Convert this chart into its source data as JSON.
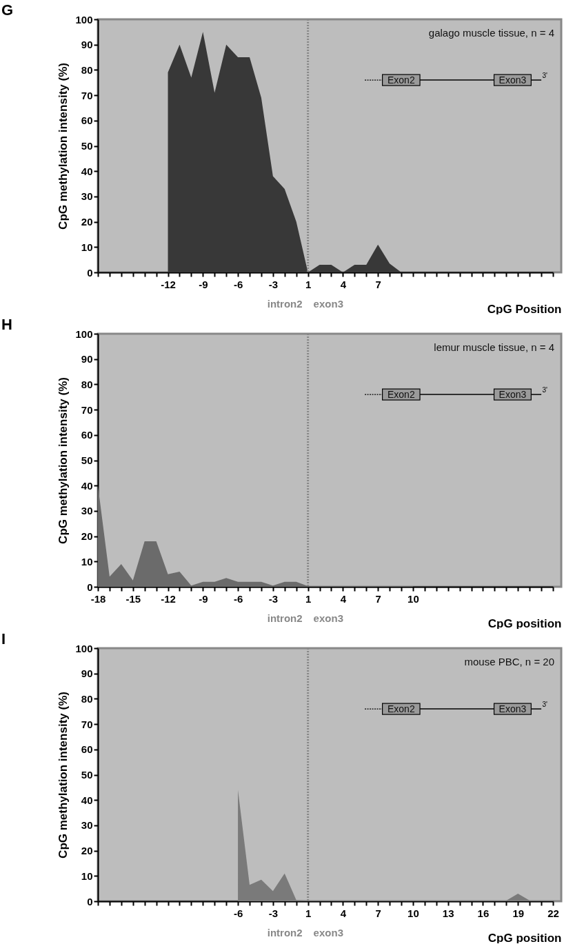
{
  "chart_data": [
    {
      "type": "area",
      "title": "G",
      "xlabel": "CpG Position",
      "ylabel": "CpG methylation intensity (%)",
      "annotations": [
        "galago muscle tissue, n = 4",
        "intron2",
        "exon3",
        "Exon2",
        "Exon3",
        "3'"
      ],
      "categories": [
        null,
        null,
        null,
        null,
        null,
        null,
        "-12",
        null,
        null,
        "-9",
        null,
        null,
        "-6",
        null,
        null,
        "-3",
        null,
        null,
        "1",
        null,
        null,
        "4",
        null,
        null,
        "7",
        null,
        null,
        null,
        null,
        null,
        null,
        null,
        null,
        null,
        null,
        null,
        null,
        null,
        null,
        null
      ],
      "values": [
        null,
        null,
        null,
        null,
        null,
        null,
        79,
        90,
        77,
        95,
        71,
        90,
        85,
        85,
        69,
        38,
        33,
        20,
        0,
        3,
        3,
        0,
        3,
        3,
        11,
        3.5,
        0,
        null,
        null,
        null,
        null,
        null,
        null,
        null,
        null,
        null,
        null,
        null,
        null,
        null
      ],
      "color": "#383838",
      "ylim": [
        0,
        100
      ],
      "yticks": [
        0,
        10,
        20,
        30,
        40,
        50,
        60,
        70,
        80,
        90,
        100
      ],
      "ref_lines": [
        {
          "axis": "x",
          "value": "1",
          "label": null,
          "color": "#888888",
          "line_style": "dotted"
        }
      ],
      "grid": false
    },
    {
      "type": "area",
      "title": "H",
      "xlabel": "CpG position",
      "ylabel": "CpG methylation intensity (%)",
      "annotations": [
        "lemur muscle tissue, n = 4",
        "intron2",
        "exon3",
        "Exon2",
        "Exon3",
        "3'"
      ],
      "categories": [
        "-18",
        null,
        null,
        "-15",
        null,
        null,
        "-12",
        null,
        null,
        "-9",
        null,
        null,
        "-6",
        null,
        null,
        "-3",
        null,
        null,
        "1",
        null,
        null,
        "4",
        null,
        null,
        "7",
        null,
        null,
        "10",
        null,
        null,
        null,
        null,
        null,
        null,
        null,
        null,
        null,
        null,
        null,
        null
      ],
      "values": [
        40,
        4,
        9,
        2.5,
        18,
        18,
        5,
        6,
        0.5,
        2,
        2,
        3.5,
        2,
        2,
        2,
        0.5,
        2,
        2,
        0.3,
        0.3,
        0.3,
        0.3,
        0.3,
        0.3,
        0.3,
        0.3,
        0.3,
        0.3,
        null,
        null,
        null,
        null,
        null,
        null,
        null,
        null,
        null,
        null,
        null,
        null
      ],
      "color": "#6b6b6b",
      "ylim": [
        0,
        100
      ],
      "yticks": [
        0,
        10,
        20,
        30,
        40,
        50,
        60,
        70,
        80,
        90,
        100
      ],
      "ref_lines": [
        {
          "axis": "x",
          "value": "1",
          "label": null,
          "color": "#888888",
          "line_style": "dotted"
        }
      ],
      "grid": false
    },
    {
      "type": "area",
      "title": "I",
      "xlabel": "CpG position",
      "ylabel": "CpG methylation intensity (%)",
      "annotations": [
        "mouse PBC, n = 20",
        "intron2",
        "exon3",
        "Exon2",
        "Exon3",
        "3'"
      ],
      "categories": [
        null,
        null,
        null,
        null,
        null,
        null,
        null,
        null,
        null,
        null,
        null,
        null,
        "-6",
        null,
        null,
        "-3",
        null,
        null,
        "1",
        null,
        null,
        "4",
        null,
        null,
        "7",
        null,
        null,
        "10",
        null,
        null,
        "13",
        null,
        null,
        "16",
        null,
        null,
        "19",
        null,
        null,
        "22"
      ],
      "values": [
        null,
        null,
        null,
        null,
        null,
        null,
        null,
        null,
        null,
        null,
        null,
        null,
        44,
        6.5,
        8.5,
        4,
        11,
        0.5,
        0.3,
        0.3,
        0.3,
        0.3,
        0.3,
        0.3,
        0.3,
        0.3,
        0.3,
        0.3,
        0.3,
        0.3,
        0.3,
        0.3,
        0.3,
        0.3,
        0.3,
        0.3,
        3,
        0.3,
        0.3,
        0.3
      ],
      "color": "#7a7a7a",
      "ylim": [
        0,
        100
      ],
      "yticks": [
        0,
        10,
        20,
        30,
        40,
        50,
        60,
        70,
        80,
        90,
        100
      ],
      "ref_lines": [
        {
          "axis": "x",
          "value": "1",
          "label": null,
          "color": "#888888",
          "line_style": "dotted"
        }
      ],
      "grid": false
    }
  ]
}
